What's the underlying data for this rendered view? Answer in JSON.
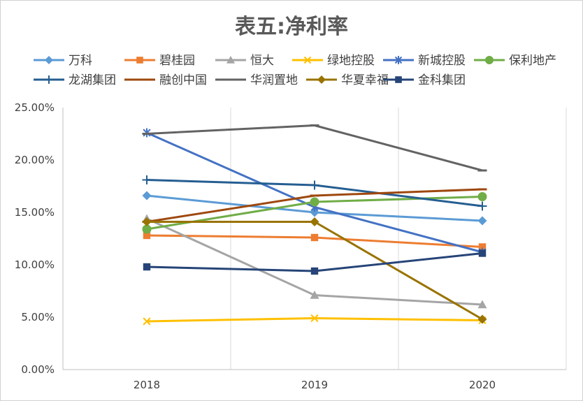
{
  "chart_data": {
    "type": "line",
    "title": "表五:净利率",
    "categories": [
      "2018",
      "2019",
      "2020"
    ],
    "ylim": [
      0,
      0.25
    ],
    "yticks": [
      "0.00%",
      "5.00%",
      "10.00%",
      "15.00%",
      "20.00%",
      "25.00%"
    ],
    "ytick_values": [
      0,
      0.05,
      0.1,
      0.15,
      0.2,
      0.25
    ],
    "grid": "vertical",
    "legend_position": "top",
    "series": [
      {
        "name": "万科",
        "color": "#5b9bd5",
        "marker": "diamond",
        "values": [
          0.166,
          0.15,
          0.142
        ]
      },
      {
        "name": "碧桂园",
        "color": "#ed7d31",
        "marker": "square",
        "values": [
          0.128,
          0.126,
          0.117
        ]
      },
      {
        "name": "恒大",
        "color": "#a5a5a5",
        "marker": "triangle",
        "values": [
          0.144,
          0.071,
          0.062
        ]
      },
      {
        "name": "绿地控股",
        "color": "#ffc000",
        "marker": "x",
        "values": [
          0.046,
          0.049,
          0.047
        ]
      },
      {
        "name": "新城控股",
        "color": "#4472c4",
        "marker": "star",
        "values": [
          0.226,
          0.155,
          0.112
        ]
      },
      {
        "name": "保利地产",
        "color": "#70ad47",
        "marker": "circle",
        "values": [
          0.134,
          0.16,
          0.165
        ]
      },
      {
        "name": "龙湖集团",
        "color": "#255e91",
        "marker": "plus",
        "values": [
          0.181,
          0.176,
          0.156
        ]
      },
      {
        "name": "融创中国",
        "color": "#9e480e",
        "marker": "dash",
        "values": [
          0.141,
          0.166,
          0.172
        ]
      },
      {
        "name": "华润置地",
        "color": "#636363",
        "marker": "dash",
        "values": [
          0.225,
          0.233,
          0.19
        ]
      },
      {
        "name": "华夏幸福",
        "color": "#997300",
        "marker": "diamond",
        "values": [
          0.141,
          0.141,
          0.048
        ]
      },
      {
        "name": "金科集团",
        "color": "#264478",
        "marker": "square",
        "values": [
          0.098,
          0.094,
          0.111
        ]
      }
    ]
  }
}
